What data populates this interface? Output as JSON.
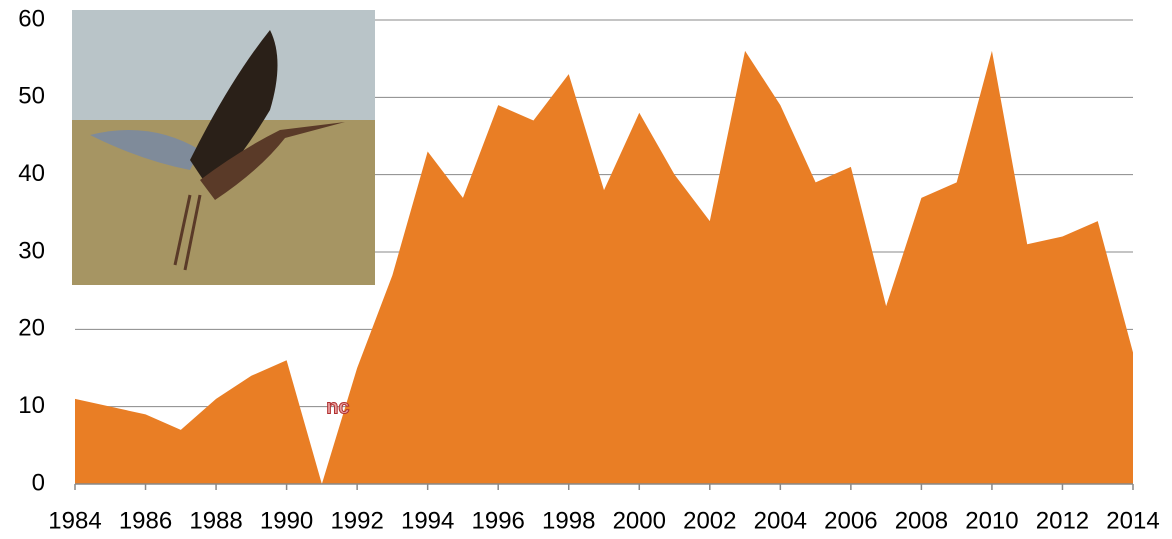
{
  "chart_data": {
    "type": "area",
    "x": [
      1984,
      1985,
      1986,
      1987,
      1988,
      1989,
      1990,
      1991,
      1992,
      1993,
      1994,
      1995,
      1996,
      1997,
      1998,
      1999,
      2000,
      2001,
      2002,
      2003,
      2004,
      2005,
      2006,
      2007,
      2008,
      2009,
      2010,
      2011,
      2012,
      2013,
      2014
    ],
    "values": [
      11,
      10,
      9,
      7,
      11,
      14,
      16,
      0,
      15,
      27,
      43,
      37,
      49,
      47,
      53,
      38,
      48,
      40,
      34,
      56,
      49,
      39,
      41,
      23,
      37,
      39,
      56,
      31,
      32,
      34,
      17
    ],
    "color": "#e97e25",
    "annotation": {
      "text": "nc",
      "x": 1991
    },
    "xlim": [
      1984,
      2014
    ],
    "xticks": [
      1984,
      1986,
      1988,
      1990,
      1992,
      1994,
      1996,
      1998,
      2000,
      2002,
      2004,
      2006,
      2008,
      2010,
      2012,
      2014
    ],
    "ylim": [
      0,
      60
    ],
    "yticks": [
      0,
      10,
      20,
      30,
      40,
      50,
      60
    ],
    "grid": true
  }
}
